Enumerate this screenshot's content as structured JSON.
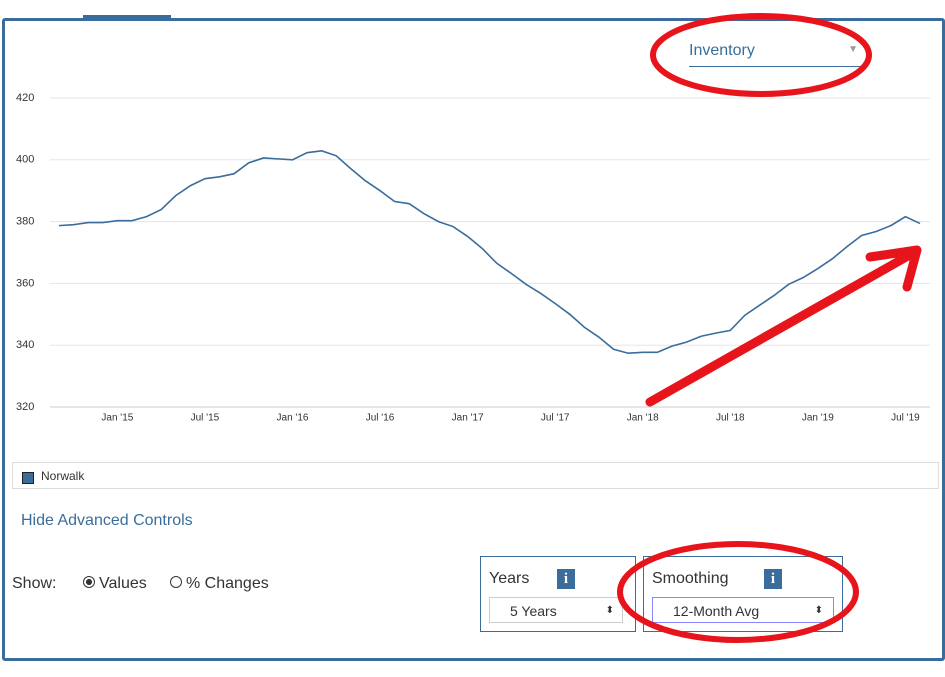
{
  "selector": {
    "metric": "Inventory"
  },
  "chart_data": {
    "type": "line",
    "categories": [
      null,
      null,
      null,
      null,
      "Jan '15",
      null,
      null,
      null,
      null,
      null,
      "Jul '15",
      null,
      null,
      null,
      null,
      null,
      "Jan '16",
      null,
      null,
      null,
      null,
      null,
      "Jul '16",
      null,
      null,
      null,
      null,
      null,
      "Jan '17",
      null,
      null,
      null,
      null,
      null,
      "Jul '17",
      null,
      null,
      null,
      null,
      null,
      "Jan '18",
      null,
      null,
      null,
      null,
      null,
      "Jul '18",
      null,
      null,
      null,
      null,
      null,
      "Jan '19",
      null,
      null,
      null,
      null,
      null,
      "Jul '19",
      null
    ],
    "series": [
      {
        "name": "Norwalk",
        "color": "#3a6d9c",
        "values": [
          378.7,
          379,
          379.7,
          379.7,
          380.3,
          380.3,
          381.6,
          383.9,
          388.4,
          391.6,
          393.9,
          394.5,
          395.5,
          399,
          400.6,
          400.3,
          400,
          402.3,
          402.9,
          401.3,
          397.1,
          393.2,
          390,
          386.5,
          385.8,
          382.6,
          380,
          378.4,
          375.2,
          371.3,
          366.5,
          363.2,
          359.7,
          356.8,
          353.5,
          350,
          345.8,
          342.6,
          338.7,
          337.4,
          337.7,
          337.7,
          339.7,
          341,
          342.9,
          343.9,
          344.8,
          349.7,
          352.9,
          356.1,
          359.7,
          361.9,
          364.8,
          368,
          371.9,
          375.5,
          376.8,
          378.7,
          381.6,
          379.4
        ]
      }
    ],
    "ylim": [
      320,
      420
    ],
    "yticks": [
      320,
      340,
      360,
      380,
      400,
      420
    ],
    "grid": true
  },
  "controls": {
    "toggle": "Hide Advanced Controls",
    "show_label": "Show:",
    "show_options": [
      "Values",
      "% Changes"
    ],
    "years_label": "Years",
    "years_value": "5 Years",
    "smoothing_label": "Smoothing",
    "smoothing_value": "12-Month Avg"
  }
}
